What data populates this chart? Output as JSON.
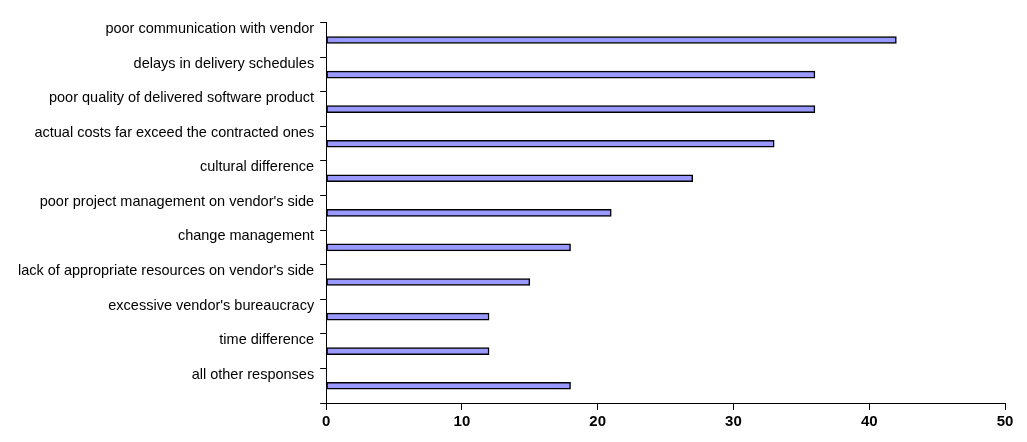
{
  "chart_data": {
    "type": "bar",
    "orientation": "horizontal",
    "categories": [
      "poor communication with vendor",
      "delays in delivery schedules",
      "poor quality of delivered software product",
      "actual costs far exceed the contracted ones",
      "cultural difference",
      "poor project management on vendor's side",
      "change management",
      "lack of appropriate resources on vendor's side",
      "excessive vendor's bureaucracy",
      "time difference",
      "all other responses"
    ],
    "values": [
      42,
      36,
      36,
      33,
      27,
      21,
      18,
      15,
      12,
      12,
      18
    ],
    "color": "#9999ff",
    "xlim": [
      0,
      50
    ],
    "xticks": [
      0,
      10,
      20,
      30,
      40,
      50
    ],
    "grid": false
  }
}
